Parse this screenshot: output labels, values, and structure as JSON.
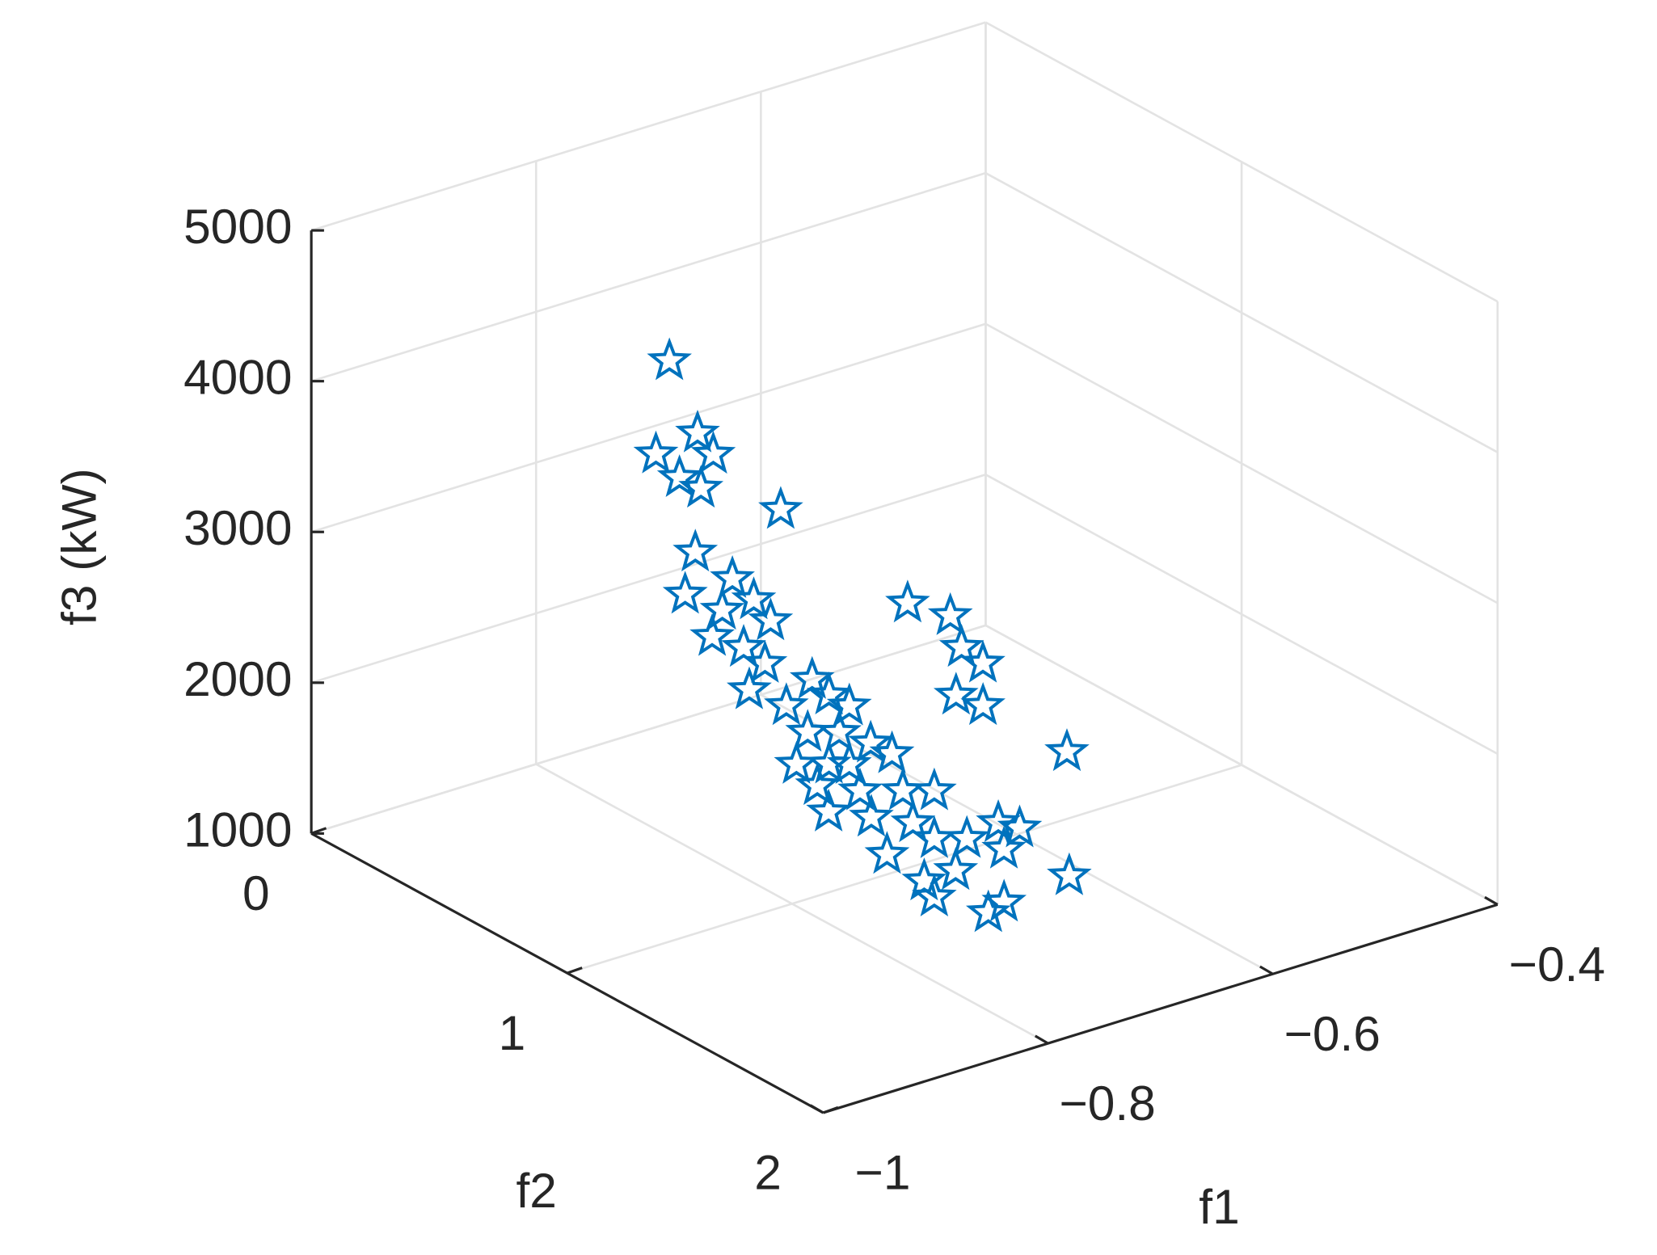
{
  "chart_data": {
    "type": "scatter3d",
    "xlabel": "f1",
    "ylabel": "f2",
    "zlabel": "f3 (kW)",
    "xlim": [
      -1,
      -0.4
    ],
    "ylim": [
      0,
      2
    ],
    "zlim": [
      1000,
      5000
    ],
    "xticks": [
      {
        "value": -1,
        "label": "−1"
      },
      {
        "value": -0.8,
        "label": "−0.8"
      },
      {
        "value": -0.6,
        "label": "−0.6"
      },
      {
        "value": -0.4,
        "label": "−0.4"
      }
    ],
    "yticks": [
      0,
      1,
      2
    ],
    "zticks": [
      1000,
      2000,
      3000,
      4000,
      5000
    ],
    "grid": true,
    "marker": "star",
    "series": [
      {
        "color": "#0072bd",
        "x": [
          -0.818,
          -0.83,
          -0.793,
          -0.779,
          -0.809,
          -0.79,
          -0.719,
          -0.795,
          -0.804,
          -0.762,
          -0.771,
          -0.743,
          -0.728,
          -0.78,
          -0.752,
          -0.733,
          -0.747,
          -0.691,
          -0.714,
          -0.676,
          -0.658,
          -0.695,
          -0.667,
          -0.639,
          -0.705,
          -0.676,
          -0.62,
          -0.823,
          -0.785,
          -0.747,
          -0.813,
          -0.775,
          -0.719,
          -0.738,
          -0.761,
          -0.719,
          -0.69,
          -0.662,
          -0.643,
          -0.728,
          -0.7,
          -0.719,
          -0.748,
          -0.762,
          -0.515,
          -0.477,
          -0.467,
          -0.448,
          -0.563,
          -0.539,
          -0.601,
          -0.69,
          -0.657,
          -0.658
        ],
        "y": [
          0.6,
          0.6,
          0.6,
          0.6,
          0.6,
          0.6,
          0.6,
          0.6,
          0.6,
          0.6,
          0.6,
          0.6,
          0.6,
          0.6,
          0.6,
          0.6,
          0.6,
          0.6,
          0.6,
          0.6,
          0.6,
          0.6,
          0.6,
          0.6,
          0.6,
          0.6,
          0.6,
          1.2,
          1.2,
          1.2,
          1.2,
          1.2,
          1.2,
          1.2,
          1.2,
          1.2,
          1.2,
          1.2,
          1.2,
          1.2,
          1.2,
          1.2,
          1.6,
          1.6,
          0.2,
          0.2,
          0.2,
          0.2,
          0.6,
          0.6,
          1.2,
          1.6,
          1.2,
          0.6
        ],
        "z": [
          4271,
          3680,
          3734,
          3561,
          3475,
          3361,
          3057,
          2949,
          2690,
          2697,
          2508,
          2513,
          2339,
          2354,
          2218,
          2068,
          1925,
          1865,
          1744,
          1727,
          1613,
          1524,
          1458,
          1323,
          1334,
          1269,
          1209,
          2020,
          1898,
          1811,
          1822,
          1700,
          1746,
          1578,
          1421,
          1429,
          1363,
          1404,
          1325,
          1169,
          1174,
          1042,
          1445,
          1407,
          1596,
          1425,
          1192,
          1043,
          1466,
          1342,
          1735,
          1486,
          1217,
          1225
        ]
      }
    ]
  }
}
